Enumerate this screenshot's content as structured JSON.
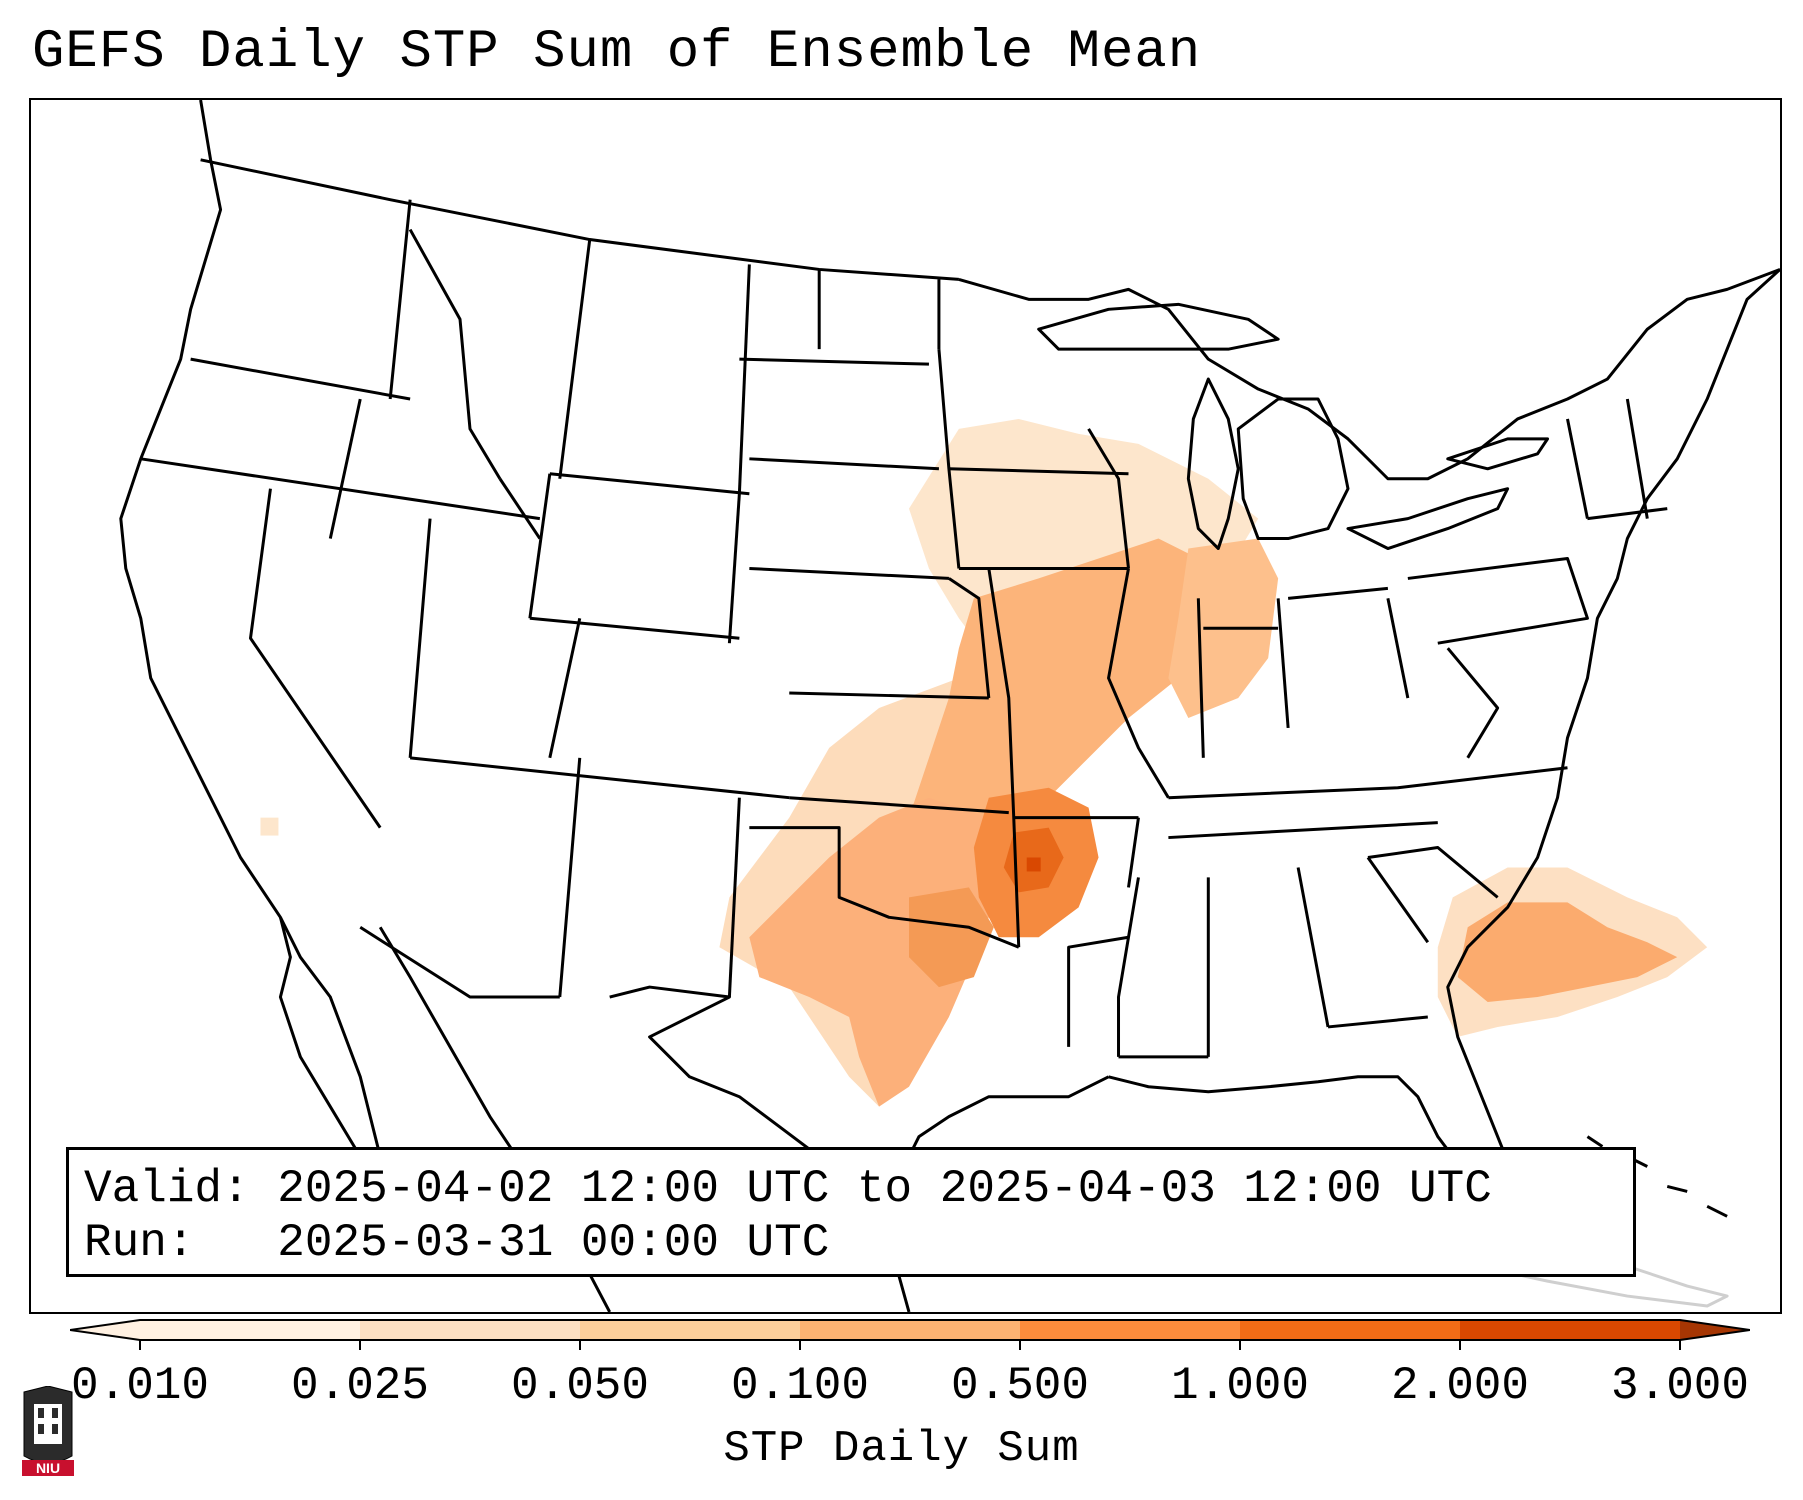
{
  "title": "GEFS Daily STP Sum of Ensemble Mean",
  "info": {
    "valid_label": "Valid:",
    "valid_value": "2025-04-02 12:00 UTC to 2025-04-03 12:00 UTC",
    "run_label": "Run:",
    "run_value": "2025-03-31 00:00 UTC"
  },
  "colorbar": {
    "label": "STP Daily Sum",
    "ticks": [
      "0.010",
      "0.025",
      "0.050",
      "0.100",
      "0.500",
      "1.000",
      "2.000",
      "3.000"
    ],
    "colors": [
      "#fff1e2",
      "#fde0c3",
      "#fdcf9b",
      "#fdb272",
      "#fd8c3c",
      "#f26c16",
      "#d94801",
      "#a63603"
    ],
    "extend": "both"
  },
  "logo": {
    "text": "NIU",
    "color": "#c8102e"
  },
  "map": {
    "region": "Contiguous United States",
    "highlight_areas": [
      {
        "name": "Arkansas core",
        "level": "1.000"
      },
      {
        "name": "Missouri / Illinois / Indiana",
        "level": "0.500"
      },
      {
        "name": "Oklahoma / Texas band",
        "level": "0.500"
      },
      {
        "name": "Off Georgia-South Carolina coast",
        "level": "0.500"
      },
      {
        "name": "Iowa / Wisconsin fringe",
        "level": "0.025"
      }
    ]
  }
}
